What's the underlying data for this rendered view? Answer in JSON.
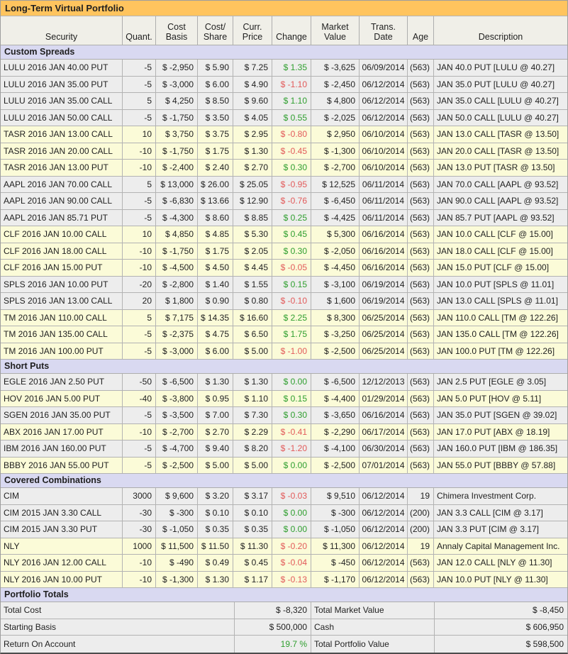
{
  "title": "Long-Term Virtual Portfolio",
  "colors": {
    "accent": "#FFC45E",
    "header_bg": "#F0EFE8",
    "section_bg": "#D9D9F1",
    "band_gray": "#EDEDED",
    "band_yellow": "#FBFBD8",
    "positive": "#2E9E2E",
    "negative": "#E25A5A"
  },
  "columns": [
    {
      "key": "security",
      "label": "Security"
    },
    {
      "key": "quant",
      "label": "Quant."
    },
    {
      "key": "cost-basis",
      "label": "Cost\nBasis"
    },
    {
      "key": "cost-share",
      "label": "Cost/\nShare"
    },
    {
      "key": "curr-price",
      "label": "Curr.\nPrice"
    },
    {
      "key": "change",
      "label": "Change"
    },
    {
      "key": "market-value",
      "label": "Market\nValue"
    },
    {
      "key": "trans-date",
      "label": "Trans.\nDate"
    },
    {
      "key": "age",
      "label": "Age"
    },
    {
      "key": "description",
      "label": "Description"
    }
  ],
  "sections": [
    {
      "label": "Custom Spreads",
      "rows": [
        {
          "security": "LULU 2016 JAN 40.00 PUT",
          "quant": "-5",
          "cost_basis": "$ -2,950",
          "cost_share": "$ 5.90",
          "curr_price": "$ 7.25",
          "change": "$ 1.35",
          "change_dir": "up",
          "market_value": "$ -3,625",
          "trans_date": "06/09/2014",
          "age": "(563)",
          "description": "JAN 40.0 PUT [LULU @ 40.27]",
          "band": "gray"
        },
        {
          "security": "LULU 2016 JAN 35.00 PUT",
          "quant": "-5",
          "cost_basis": "$ -3,000",
          "cost_share": "$ 6.00",
          "curr_price": "$ 4.90",
          "change": "$ -1.10",
          "change_dir": "down",
          "market_value": "$ -2,450",
          "trans_date": "06/12/2014",
          "age": "(563)",
          "description": "JAN 35.0 PUT [LULU @ 40.27]",
          "band": "gray"
        },
        {
          "security": "LULU 2016 JAN 35.00 CALL",
          "quant": "5",
          "cost_basis": "$ 4,250",
          "cost_share": "$ 8.50",
          "curr_price": "$ 9.60",
          "change": "$ 1.10",
          "change_dir": "up",
          "market_value": "$ 4,800",
          "trans_date": "06/12/2014",
          "age": "(563)",
          "description": "JAN 35.0 CALL [LULU @ 40.27]",
          "band": "gray"
        },
        {
          "security": "LULU 2016 JAN 50.00 CALL",
          "quant": "-5",
          "cost_basis": "$ -1,750",
          "cost_share": "$ 3.50",
          "curr_price": "$ 4.05",
          "change": "$ 0.55",
          "change_dir": "up",
          "market_value": "$ -2,025",
          "trans_date": "06/12/2014",
          "age": "(563)",
          "description": "JAN 50.0 CALL [LULU @ 40.27]",
          "band": "gray"
        },
        {
          "security": "TASR 2016 JAN 13.00 CALL",
          "quant": "10",
          "cost_basis": "$ 3,750",
          "cost_share": "$ 3.75",
          "curr_price": "$ 2.95",
          "change": "$ -0.80",
          "change_dir": "down",
          "market_value": "$ 2,950",
          "trans_date": "06/10/2014",
          "age": "(563)",
          "description": "JAN 13.0 CALL [TASR @ 13.50]",
          "band": "yellow"
        },
        {
          "security": "TASR 2016 JAN 20.00 CALL",
          "quant": "-10",
          "cost_basis": "$ -1,750",
          "cost_share": "$ 1.75",
          "curr_price": "$ 1.30",
          "change": "$ -0.45",
          "change_dir": "down",
          "market_value": "$ -1,300",
          "trans_date": "06/10/2014",
          "age": "(563)",
          "description": "JAN 20.0 CALL [TASR @ 13.50]",
          "band": "yellow"
        },
        {
          "security": "TASR 2016 JAN 13.00 PUT",
          "quant": "-10",
          "cost_basis": "$ -2,400",
          "cost_share": "$ 2.40",
          "curr_price": "$ 2.70",
          "change": "$ 0.30",
          "change_dir": "up",
          "market_value": "$ -2,700",
          "trans_date": "06/10/2014",
          "age": "(563)",
          "description": "JAN 13.0 PUT [TASR @ 13.50]",
          "band": "yellow"
        },
        {
          "security": "AAPL 2016 JAN 70.00 CALL",
          "quant": "5",
          "cost_basis": "$ 13,000",
          "cost_share": "$ 26.00",
          "curr_price": "$ 25.05",
          "change": "$ -0.95",
          "change_dir": "down",
          "market_value": "$ 12,525",
          "trans_date": "06/11/2014",
          "age": "(563)",
          "description": "JAN 70.0 CALL [AAPL @ 93.52]",
          "band": "gray"
        },
        {
          "security": "AAPL 2016 JAN 90.00 CALL",
          "quant": "-5",
          "cost_basis": "$ -6,830",
          "cost_share": "$ 13.66",
          "curr_price": "$ 12.90",
          "change": "$ -0.76",
          "change_dir": "down",
          "market_value": "$ -6,450",
          "trans_date": "06/11/2014",
          "age": "(563)",
          "description": "JAN 90.0 CALL [AAPL @ 93.52]",
          "band": "gray"
        },
        {
          "security": "AAPL 2016 JAN 85.71 PUT",
          "quant": "-5",
          "cost_basis": "$ -4,300",
          "cost_share": "$ 8.60",
          "curr_price": "$ 8.85",
          "change": "$ 0.25",
          "change_dir": "up",
          "market_value": "$ -4,425",
          "trans_date": "06/11/2014",
          "age": "(563)",
          "description": "JAN 85.7 PUT [AAPL @ 93.52]",
          "band": "gray"
        },
        {
          "security": "CLF 2016 JAN 10.00 CALL",
          "quant": "10",
          "cost_basis": "$ 4,850",
          "cost_share": "$ 4.85",
          "curr_price": "$ 5.30",
          "change": "$ 0.45",
          "change_dir": "up",
          "market_value": "$ 5,300",
          "trans_date": "06/16/2014",
          "age": "(563)",
          "description": "JAN 10.0 CALL [CLF @ 15.00]",
          "band": "yellow"
        },
        {
          "security": "CLF 2016 JAN 18.00 CALL",
          "quant": "-10",
          "cost_basis": "$ -1,750",
          "cost_share": "$ 1.75",
          "curr_price": "$ 2.05",
          "change": "$ 0.30",
          "change_dir": "up",
          "market_value": "$ -2,050",
          "trans_date": "06/16/2014",
          "age": "(563)",
          "description": "JAN 18.0 CALL [CLF @ 15.00]",
          "band": "yellow"
        },
        {
          "security": "CLF 2016 JAN 15.00 PUT",
          "quant": "-10",
          "cost_basis": "$ -4,500",
          "cost_share": "$ 4.50",
          "curr_price": "$ 4.45",
          "change": "$ -0.05",
          "change_dir": "down",
          "market_value": "$ -4,450",
          "trans_date": "06/16/2014",
          "age": "(563)",
          "description": "JAN 15.0 PUT [CLF @ 15.00]",
          "band": "yellow"
        },
        {
          "security": "SPLS 2016 JAN 10.00 PUT",
          "quant": "-20",
          "cost_basis": "$ -2,800",
          "cost_share": "$ 1.40",
          "curr_price": "$ 1.55",
          "change": "$ 0.15",
          "change_dir": "up",
          "market_value": "$ -3,100",
          "trans_date": "06/19/2014",
          "age": "(563)",
          "description": "JAN 10.0 PUT [SPLS @ 11.01]",
          "band": "gray"
        },
        {
          "security": "SPLS 2016 JAN 13.00 CALL",
          "quant": "20",
          "cost_basis": "$ 1,800",
          "cost_share": "$ 0.90",
          "curr_price": "$ 0.80",
          "change": "$ -0.10",
          "change_dir": "down",
          "market_value": "$ 1,600",
          "trans_date": "06/19/2014",
          "age": "(563)",
          "description": "JAN 13.0 CALL [SPLS @ 11.01]",
          "band": "gray"
        },
        {
          "security": "TM 2016 JAN 110.00 CALL",
          "quant": "5",
          "cost_basis": "$ 7,175",
          "cost_share": "$ 14.35",
          "curr_price": "$ 16.60",
          "change": "$ 2.25",
          "change_dir": "up",
          "market_value": "$ 8,300",
          "trans_date": "06/25/2014",
          "age": "(563)",
          "description": "JAN 110.0 CALL [TM @ 122.26]",
          "band": "yellow"
        },
        {
          "security": "TM 2016 JAN 135.00 CALL",
          "quant": "-5",
          "cost_basis": "$ -2,375",
          "cost_share": "$ 4.75",
          "curr_price": "$ 6.50",
          "change": "$ 1.75",
          "change_dir": "up",
          "market_value": "$ -3,250",
          "trans_date": "06/25/2014",
          "age": "(563)",
          "description": "JAN 135.0 CALL [TM @ 122.26]",
          "band": "yellow"
        },
        {
          "security": "TM 2016 JAN 100.00 PUT",
          "quant": "-5",
          "cost_basis": "$ -3,000",
          "cost_share": "$ 6.00",
          "curr_price": "$ 5.00",
          "change": "$ -1.00",
          "change_dir": "down",
          "market_value": "$ -2,500",
          "trans_date": "06/25/2014",
          "age": "(563)",
          "description": "JAN 100.0 PUT [TM @ 122.26]",
          "band": "yellow"
        }
      ]
    },
    {
      "label": "Short Puts",
      "rows": [
        {
          "security": "EGLE 2016 JAN 2.50 PUT",
          "quant": "-50",
          "cost_basis": "$ -6,500",
          "cost_share": "$ 1.30",
          "curr_price": "$ 1.30",
          "change": "$ 0.00",
          "change_dir": "up",
          "market_value": "$ -6,500",
          "trans_date": "12/12/2013",
          "age": "(563)",
          "description": "JAN 2.5 PUT [EGLE @ 3.05]",
          "band": "gray"
        },
        {
          "security": "HOV 2016 JAN 5.00 PUT",
          "quant": "-40",
          "cost_basis": "$ -3,800",
          "cost_share": "$ 0.95",
          "curr_price": "$ 1.10",
          "change": "$ 0.15",
          "change_dir": "up",
          "market_value": "$ -4,400",
          "trans_date": "01/29/2014",
          "age": "(563)",
          "description": "JAN 5.0 PUT [HOV @ 5.11]",
          "band": "yellow"
        },
        {
          "security": "SGEN 2016 JAN 35.00 PUT",
          "quant": "-5",
          "cost_basis": "$ -3,500",
          "cost_share": "$ 7.00",
          "curr_price": "$ 7.30",
          "change": "$ 0.30",
          "change_dir": "up",
          "market_value": "$ -3,650",
          "trans_date": "06/16/2014",
          "age": "(563)",
          "description": "JAN 35.0 PUT [SGEN @ 39.02]",
          "band": "gray"
        },
        {
          "security": "ABX 2016 JAN 17.00 PUT",
          "quant": "-10",
          "cost_basis": "$ -2,700",
          "cost_share": "$ 2.70",
          "curr_price": "$ 2.29",
          "change": "$ -0.41",
          "change_dir": "down",
          "market_value": "$ -2,290",
          "trans_date": "06/17/2014",
          "age": "(563)",
          "description": "JAN 17.0 PUT [ABX @ 18.19]",
          "band": "yellow"
        },
        {
          "security": "IBM 2016 JAN 160.00 PUT",
          "quant": "-5",
          "cost_basis": "$ -4,700",
          "cost_share": "$ 9.40",
          "curr_price": "$ 8.20",
          "change": "$ -1.20",
          "change_dir": "down",
          "market_value": "$ -4,100",
          "trans_date": "06/30/2014",
          "age": "(563)",
          "description": "JAN 160.0 PUT [IBM @ 186.35]",
          "band": "gray"
        },
        {
          "security": "BBBY 2016 JAN 55.00 PUT",
          "quant": "-5",
          "cost_basis": "$ -2,500",
          "cost_share": "$ 5.00",
          "curr_price": "$ 5.00",
          "change": "$ 0.00",
          "change_dir": "up",
          "market_value": "$ -2,500",
          "trans_date": "07/01/2014",
          "age": "(563)",
          "description": "JAN 55.0 PUT [BBBY @ 57.88]",
          "band": "yellow"
        }
      ]
    },
    {
      "label": "Covered Combinations",
      "rows": [
        {
          "security": "CIM",
          "quant": "3000",
          "cost_basis": "$ 9,600",
          "cost_share": "$ 3.20",
          "curr_price": "$ 3.17",
          "change": "$ -0.03",
          "change_dir": "down",
          "market_value": "$ 9,510",
          "trans_date": "06/12/2014",
          "age": "19",
          "description": "Chimera Investment Corp.",
          "band": "gray"
        },
        {
          "security": "CIM 2015 JAN 3.30 CALL",
          "quant": "-30",
          "cost_basis": "$ -300",
          "cost_share": "$ 0.10",
          "curr_price": "$ 0.10",
          "change": "$ 0.00",
          "change_dir": "up",
          "market_value": "$ -300",
          "trans_date": "06/12/2014",
          "age": "(200)",
          "description": "JAN 3.3 CALL [CIM @ 3.17]",
          "band": "gray"
        },
        {
          "security": "CIM 2015 JAN 3.30 PUT",
          "quant": "-30",
          "cost_basis": "$ -1,050",
          "cost_share": "$ 0.35",
          "curr_price": "$ 0.35",
          "change": "$ 0.00",
          "change_dir": "up",
          "market_value": "$ -1,050",
          "trans_date": "06/12/2014",
          "age": "(200)",
          "description": "JAN 3.3 PUT [CIM @ 3.17]",
          "band": "gray"
        },
        {
          "security": "NLY",
          "quant": "1000",
          "cost_basis": "$ 11,500",
          "cost_share": "$ 11.50",
          "curr_price": "$ 11.30",
          "change": "$ -0.20",
          "change_dir": "down",
          "market_value": "$ 11,300",
          "trans_date": "06/12/2014",
          "age": "19",
          "description": "Annaly Capital Management Inc.",
          "band": "yellow"
        },
        {
          "security": "NLY 2016 JAN 12.00 CALL",
          "quant": "-10",
          "cost_basis": "$ -490",
          "cost_share": "$ 0.49",
          "curr_price": "$ 0.45",
          "change": "$ -0.04",
          "change_dir": "down",
          "market_value": "$ -450",
          "trans_date": "06/12/2014",
          "age": "(563)",
          "description": "JAN 12.0 CALL [NLY @ 11.30]",
          "band": "yellow"
        },
        {
          "security": "NLY 2016 JAN 10.00 PUT",
          "quant": "-10",
          "cost_basis": "$ -1,300",
          "cost_share": "$ 1.30",
          "curr_price": "$ 1.17",
          "change": "$ -0.13",
          "change_dir": "down",
          "market_value": "$ -1,170",
          "trans_date": "06/12/2014",
          "age": "(563)",
          "description": "JAN 10.0 PUT [NLY @ 11.30]",
          "band": "yellow"
        }
      ]
    }
  ],
  "totals": {
    "label": "Portfolio Totals",
    "rows": [
      {
        "label_left": "Total Cost",
        "value_left": "$ -8,320",
        "value_left_dir": "none",
        "label_right": "Total Market Value",
        "value_right": "$ -8,450"
      },
      {
        "label_left": "Starting Basis",
        "value_left": "$ 500,000",
        "value_left_dir": "none",
        "label_right": "Cash",
        "value_right": "$ 606,950"
      },
      {
        "label_left": "Return On Account",
        "value_left": "19.7 %",
        "value_left_dir": "up",
        "label_right": "Total Portfolio Value",
        "value_right": "$ 598,500"
      }
    ]
  }
}
